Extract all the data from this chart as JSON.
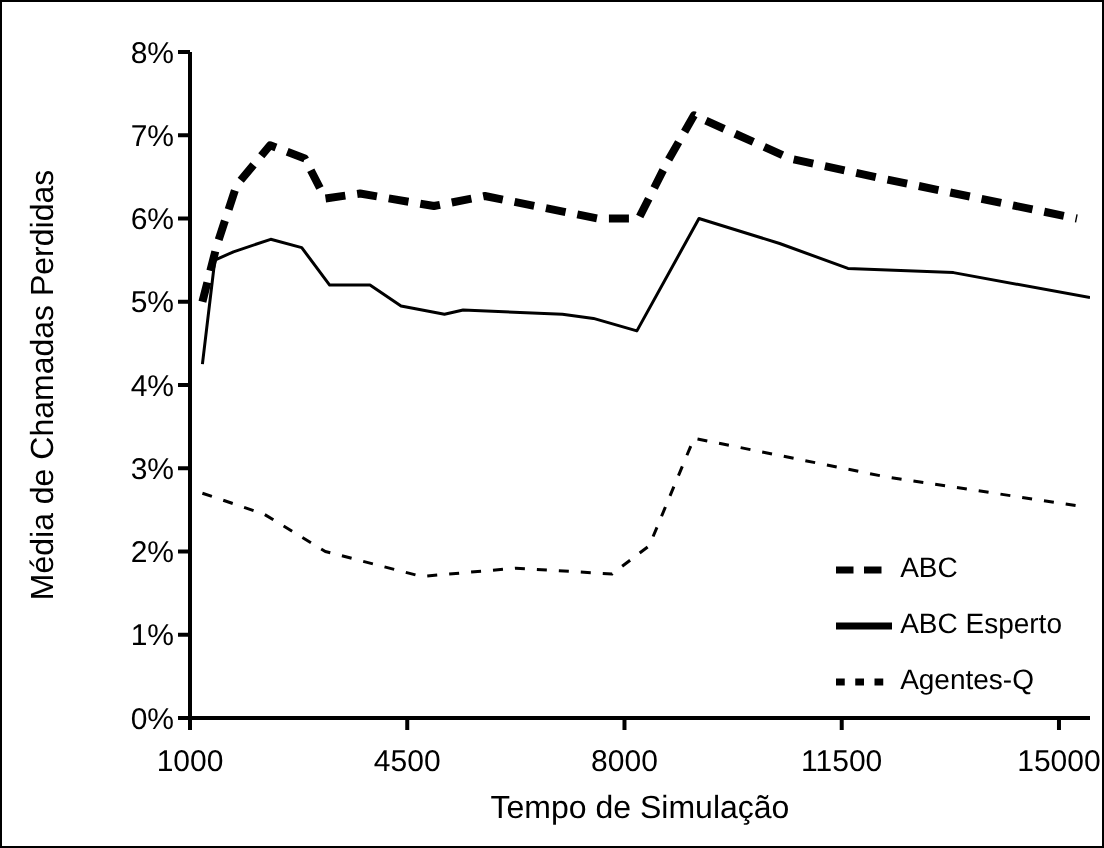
{
  "chart_data": {
    "type": "line",
    "xlabel": "Tempo de Simulação",
    "ylabel": "Média de Chamadas Perdidas",
    "xlim": [
      1000,
      15500
    ],
    "xticks": [
      1000,
      4500,
      8000,
      11500,
      15000
    ],
    "ylim": [
      0,
      8
    ],
    "yticks": [
      {
        "value": 0,
        "label": "0%"
      },
      {
        "value": 1,
        "label": "1%"
      },
      {
        "value": 2,
        "label": "2%"
      },
      {
        "value": 3,
        "label": "3%"
      },
      {
        "value": 4,
        "label": "4%"
      },
      {
        "value": 5,
        "label": "5%"
      },
      {
        "value": 6,
        "label": "6%"
      },
      {
        "value": 7,
        "label": "7%"
      },
      {
        "value": 8,
        "label": "8%"
      }
    ],
    "grid": false,
    "legend": "bottom right",
    "marker": "none",
    "series": [
      {
        "name": "ABC",
        "color": "#000000",
        "line_style": "dashed",
        "x": [
          1200,
          1430,
          1750,
          2290,
          2850,
          3180,
          3740,
          4930,
          5750,
          7570,
          8230,
          8690,
          9120,
          10670,
          12090,
          15290
        ],
        "values": [
          5.0,
          5.67,
          6.4,
          6.88,
          6.72,
          6.24,
          6.3,
          6.15,
          6.27,
          6.0,
          6.0,
          6.68,
          7.24,
          6.72,
          6.49,
          6.0
        ]
      },
      {
        "name": "ABC Esperto",
        "color": "#000000",
        "line_style": "solid",
        "x": [
          1200,
          1400,
          1700,
          2300,
          2800,
          3250,
          3900,
          4400,
          5100,
          5400,
          7000,
          7500,
          8200,
          9200,
          10500,
          11600,
          13300,
          15500
        ],
        "values": [
          4.25,
          5.5,
          5.6,
          5.75,
          5.65,
          5.2,
          5.2,
          4.95,
          4.85,
          4.9,
          4.85,
          4.8,
          4.65,
          6.0,
          5.7,
          5.4,
          5.35,
          5.05
        ]
      },
      {
        "name": "Agentes-Q",
        "color": "#000000",
        "line_style": "dotted",
        "x": [
          1200,
          2190,
          3180,
          4730,
          6250,
          7800,
          8400,
          9120,
          12190,
          15290
        ],
        "values": [
          2.7,
          2.45,
          2.0,
          1.7,
          1.8,
          1.73,
          2.07,
          3.36,
          2.9,
          2.55
        ]
      }
    ]
  }
}
